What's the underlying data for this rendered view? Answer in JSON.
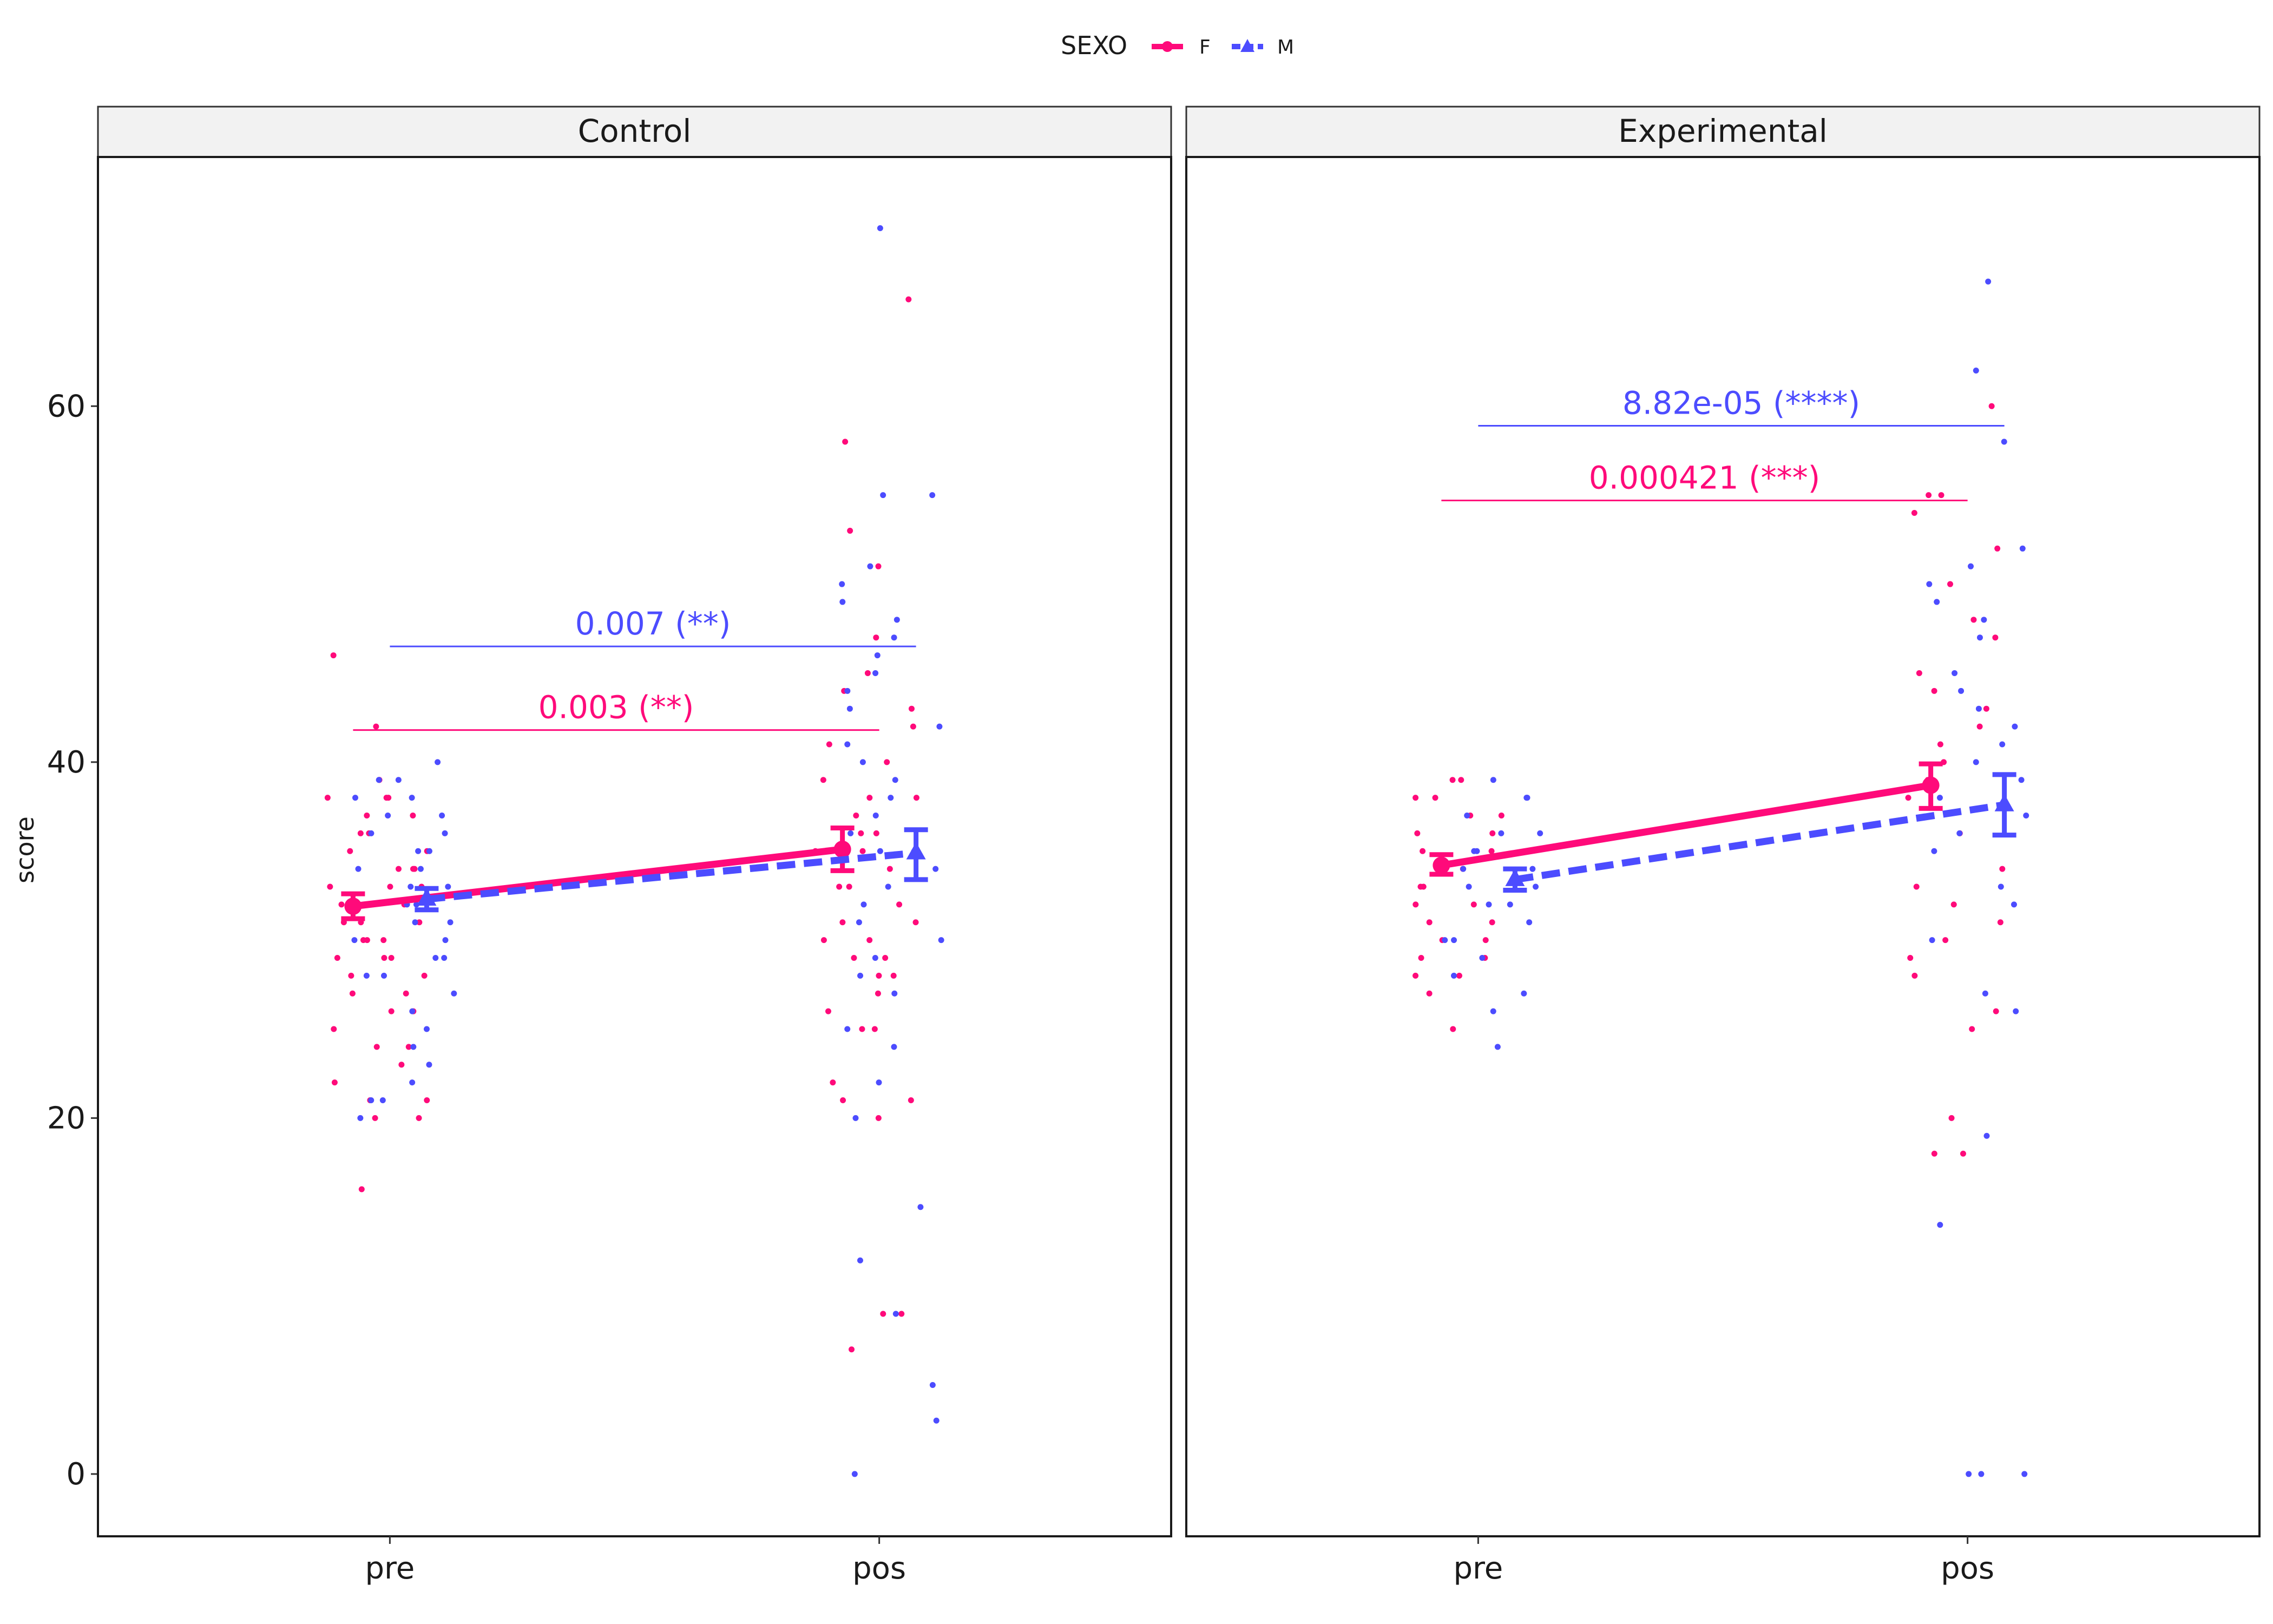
{
  "chart_data": {
    "type": "line",
    "ylabel": "score",
    "ylim": [
      -3.5,
      74.0
    ],
    "yticks": [
      0,
      20,
      40,
      60
    ],
    "categories": [
      "pre",
      "pos"
    ],
    "legend": {
      "title": "SEXO",
      "position": "top",
      "entries": [
        {
          "name": "F",
          "color": "#ff0a7a",
          "marker": "circle",
          "line": "solid"
        },
        {
          "name": "M",
          "color": "#4c4cff",
          "marker": "triangle",
          "line": "dashed"
        }
      ]
    },
    "grid": false,
    "panels": [
      {
        "title": "Control",
        "series": [
          {
            "name": "F",
            "means": [
              31.9,
              35.1
            ],
            "ci_low": [
              31.2,
              33.9
            ],
            "ci_high": [
              32.6,
              36.3
            ]
          },
          {
            "name": "M",
            "means": [
              32.3,
              34.9
            ],
            "ci_low": [
              31.7,
              33.4
            ],
            "ci_high": [
              32.9,
              36.2
            ]
          }
        ],
        "raw_points": {
          "F": {
            "pre": [
              39,
              39,
              38,
              38,
              38,
              37,
              37,
              36,
              36,
              35,
              35,
              34,
              34,
              34,
              33,
              33,
              33,
              32,
              32,
              32,
              31,
              31,
              31,
              30,
              30,
              30,
              29,
              29,
              29,
              28,
              28,
              27,
              27,
              26,
              26,
              25,
              24,
              24,
              23,
              22,
              21,
              21,
              20,
              20,
              16,
              42,
              46
            ],
            "pos": [
              66,
              58,
              53,
              51,
              47,
              45,
              44,
              43,
              42,
              41,
              40,
              39,
              38,
              38,
              37,
              36,
              36,
              35,
              35,
              34,
              33,
              33,
              32,
              31,
              31,
              30,
              30,
              29,
              29,
              28,
              28,
              27,
              26,
              25,
              25,
              22,
              21,
              21,
              20,
              9,
              9,
              7
            ]
          },
          "M": {
            "pre": [
              40,
              39,
              39,
              38,
              38,
              37,
              37,
              36,
              36,
              35,
              35,
              34,
              34,
              33,
              33,
              32,
              32,
              31,
              31,
              30,
              30,
              29,
              29,
              28,
              28,
              27,
              26,
              25,
              24,
              23,
              22,
              21,
              21,
              20
            ],
            "pos": [
              70,
              55,
              55,
              51,
              50,
              49,
              48,
              47,
              46,
              45,
              44,
              43,
              42,
              41,
              40,
              39,
              38,
              37,
              36,
              35,
              34,
              33,
              32,
              31,
              30,
              29,
              28,
              27,
              25,
              24,
              22,
              20,
              15,
              12,
              9,
              5,
              3,
              0
            ]
          }
        },
        "comparisons": [
          {
            "series": "M",
            "label": "0.007 (**)",
            "y": 46.5
          },
          {
            "series": "F",
            "label": "0.003 (**)",
            "y": 41.8
          }
        ]
      },
      {
        "title": "Experimental",
        "series": [
          {
            "name": "F",
            "means": [
              34.2,
              38.7
            ],
            "ci_low": [
              33.7,
              37.4
            ],
            "ci_high": [
              34.8,
              39.9
            ]
          },
          {
            "name": "M",
            "means": [
              33.4,
              37.6
            ],
            "ci_low": [
              32.8,
              35.9
            ],
            "ci_high": [
              34.0,
              39.3
            ]
          }
        ],
        "raw_points": {
          "F": {
            "pre": [
              39,
              39,
              38,
              38,
              37,
              37,
              36,
              36,
              35,
              35,
              34,
              34,
              33,
              33,
              32,
              32,
              31,
              31,
              30,
              30,
              29,
              29,
              28,
              28,
              27,
              25
            ],
            "pos": [
              60,
              55,
              55,
              54,
              52,
              50,
              48,
              47,
              45,
              44,
              43,
              42,
              41,
              40,
              39,
              38,
              36,
              34,
              33,
              32,
              31,
              30,
              29,
              28,
              26,
              25,
              20,
              18,
              18
            ]
          },
          "M": {
            "pre": [
              39,
              38,
              38,
              37,
              36,
              36,
              35,
              35,
              34,
              34,
              33,
              33,
              32,
              32,
              31,
              30,
              30,
              29,
              28,
              27,
              26,
              24
            ],
            "pos": [
              67,
              62,
              58,
              52,
              51,
              50,
              49,
              48,
              47,
              45,
              44,
              43,
              42,
              41,
              40,
              39,
              38,
              37,
              36,
              35,
              33,
              32,
              30,
              27,
              26,
              19,
              14,
              0,
              0,
              0
            ]
          }
        },
        "comparisons": [
          {
            "series": "M",
            "label": "8.82e-05 (****)",
            "y": 58.9
          },
          {
            "series": "F",
            "label": "0.000421 (***)",
            "y": 54.7
          }
        ]
      }
    ]
  }
}
